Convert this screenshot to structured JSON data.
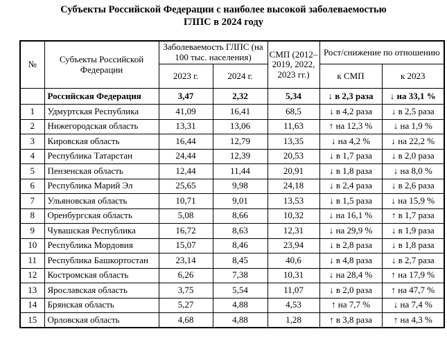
{
  "title": {
    "line1": "Субъекты Российской Федерации с наиболее высокой заболеваемостью",
    "line2": "ГЛПС в 2024 году"
  },
  "table": {
    "headers": {
      "num": "№",
      "subject": "Субъекты Российской Федерации",
      "incidence_group": "Заболеваемость ГЛПС (на 100 тыс. населения)",
      "y2023": "2023 г.",
      "y2024": "2024 г.",
      "smp": "СМП (2012–2019, 2022, 2023 гг.)",
      "growth_group": "Рост/снижение по отношению",
      "to_smp": "к СМП",
      "to_2023": "к 2023"
    },
    "summary_row": {
      "num": "",
      "subject": "Российская Федерация",
      "y2023": "3,47",
      "y2024": "2,32",
      "smp": "5,34",
      "to_smp": "↓ в 2,3 раза",
      "to_2023": "↓ на 33,1 %"
    },
    "rows": [
      {
        "num": "1",
        "subject": "Удмуртская Республика",
        "y2023": "41,09",
        "y2024": "16,41",
        "smp": "68,5",
        "to_smp": "↓ в 4,2 раза",
        "to_2023": "↓ в 2,5 раза"
      },
      {
        "num": "2",
        "subject": "Нижегородская область",
        "y2023": "13,31",
        "y2024": "13,06",
        "smp": "11,63",
        "to_smp": "↑ на 12,3 %",
        "to_2023": "↓ на 1,9 %"
      },
      {
        "num": "3",
        "subject": "Кировская область",
        "y2023": "16,44",
        "y2024": "12,79",
        "smp": "13,35",
        "to_smp": "↓ на 4,2 %",
        "to_2023": "↓ на 22,2 %"
      },
      {
        "num": "4",
        "subject": "Республика Татарстан",
        "y2023": "24,44",
        "y2024": "12,39",
        "smp": "20,53",
        "to_smp": "↓ в 1,7 раза",
        "to_2023": "↓ в 2,0 раза"
      },
      {
        "num": "5",
        "subject": "Пензенская область",
        "y2023": "12,44",
        "y2024": "11,44",
        "smp": "20,91",
        "to_smp": "↓ в 1,8 раза",
        "to_2023": "↓ на 8,0 %"
      },
      {
        "num": "6",
        "subject": "Республика Марий Эл",
        "y2023": "25,65",
        "y2024": "9,98",
        "smp": "24,18",
        "to_smp": "↓ в 2,4 раза",
        "to_2023": "↓ в 2,6 раза"
      },
      {
        "num": "7",
        "subject": "Ульяновская область",
        "y2023": "10,71",
        "y2024": "9,01",
        "smp": "13,53",
        "to_smp": "↓ в 1,5 раза",
        "to_2023": "↓ на 15,9 %"
      },
      {
        "num": "8",
        "subject": "Оренбургская область",
        "y2023": "5,08",
        "y2024": "8,66",
        "smp": "10,32",
        "to_smp": "↓ на 16,1 %",
        "to_2023": "↑ в 1,7 раза"
      },
      {
        "num": "9",
        "subject": "Чувашская Республика",
        "y2023": "16,72",
        "y2024": "8,63",
        "smp": "12,31",
        "to_smp": "↓ на 29,9 %",
        "to_2023": "↓ в 1,9 раза"
      },
      {
        "num": "10",
        "subject": "Республика Мордовия",
        "y2023": "15,07",
        "y2024": "8,46",
        "smp": "23,94",
        "to_smp": "↓ в 2,8 раза",
        "to_2023": "↓ в 1,8 раза"
      },
      {
        "num": "11",
        "subject": "Республика Башкортостан",
        "y2023": "23,14",
        "y2024": "8,45",
        "smp": "40,6",
        "to_smp": "↓ в 4,8 раза",
        "to_2023": "↓ в 2,7 раза"
      },
      {
        "num": "12",
        "subject": "Костромская область",
        "y2023": "6,26",
        "y2024": "7,38",
        "smp": "10,31",
        "to_smp": "↓ на 28,4 %",
        "to_2023": "↑ на 17,9 %"
      },
      {
        "num": "13",
        "subject": "Ярославская область",
        "y2023": "3,75",
        "y2024": "5,54",
        "smp": "11,07",
        "to_smp": "↓ в 2,0 раза",
        "to_2023": "↑ на 47,7 %"
      },
      {
        "num": "14",
        "subject": "Брянская область",
        "y2023": "5,27",
        "y2024": "4,88",
        "smp": "4,53",
        "to_smp": "↑ на 7,7 %",
        "to_2023": "↓ на 7,4 %"
      },
      {
        "num": "15",
        "subject": "Орловская область",
        "y2023": "4,68",
        "y2024": "4,88",
        "smp": "1,28",
        "to_smp": "↑ в 3,8 раза",
        "to_2023": "↑ на 4,3 %"
      }
    ]
  }
}
